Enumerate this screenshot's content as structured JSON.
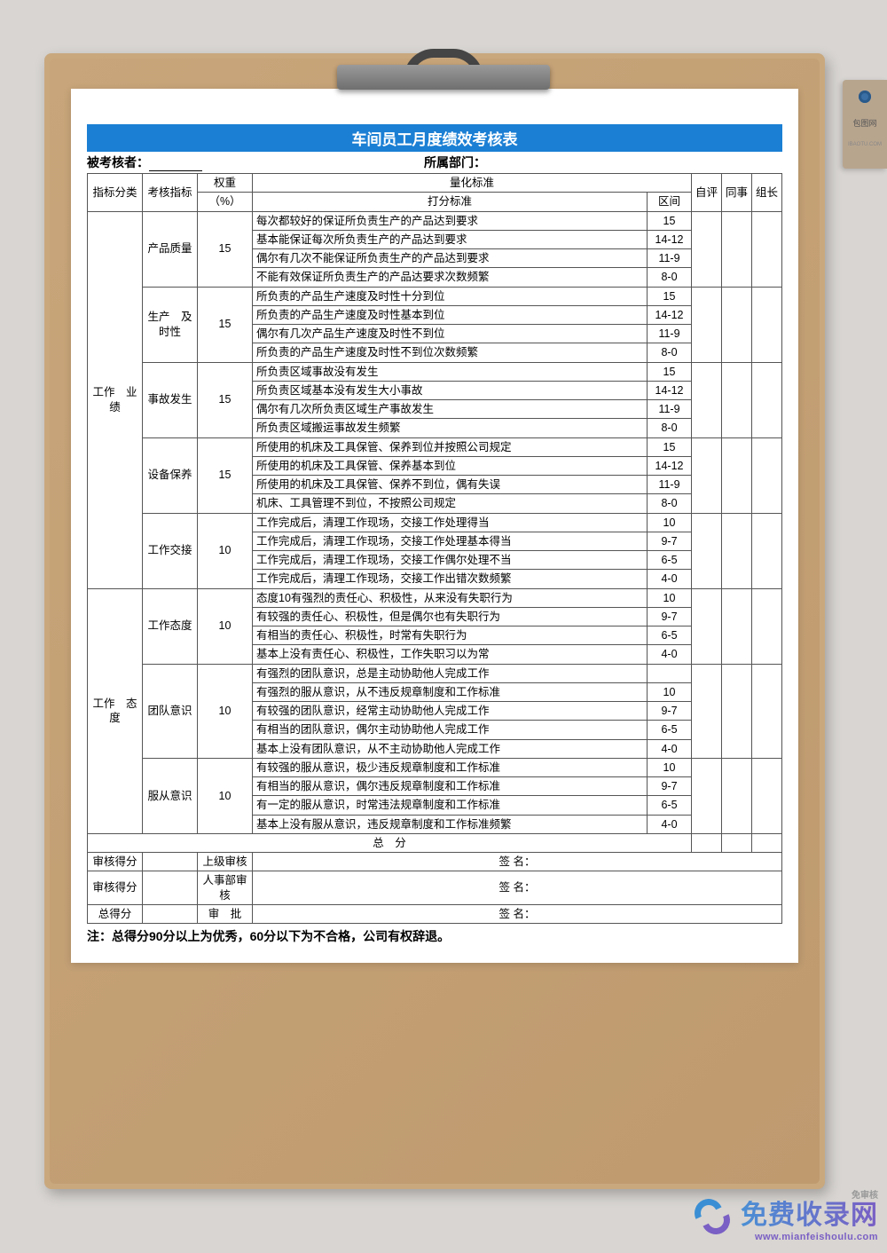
{
  "title": "车间员工月度绩效考核表",
  "header": {
    "examineeLabel": "被考核者：",
    "deptLabel": "所属部门："
  },
  "columns": {
    "category": "指标分类",
    "indicator": "考核指标",
    "weight": "权重",
    "weightUnit": "（%）",
    "quantStd": "量化标准",
    "scoreStd": "打分标准",
    "range": "区间",
    "self": "自评",
    "peer": "同事",
    "leader": "组长"
  },
  "categories": [
    {
      "name": "工作　业绩",
      "indicators": [
        {
          "name": "产品质量",
          "weight": "15",
          "rows": [
            {
              "std": "每次都较好的保证所负责生产的产品达到要求",
              "range": "15"
            },
            {
              "std": "基本能保证每次所负责生产的产品达到要求",
              "range": "14-12"
            },
            {
              "std": "偶尔有几次不能保证所负责生产的产品达到要求",
              "range": "11-9"
            },
            {
              "std": "不能有效保证所负责生产的产品达要求次数频繁",
              "range": "8-0"
            }
          ]
        },
        {
          "name": "生产　及时性",
          "weight": "15",
          "rows": [
            {
              "std": "所负责的产品生产速度及时性十分到位",
              "range": "15"
            },
            {
              "std": "所负责的产品生产速度及时性基本到位",
              "range": "14-12"
            },
            {
              "std": "偶尔有几次产品生产速度及时性不到位",
              "range": "11-9"
            },
            {
              "std": "所负责的产品生产速度及时性不到位次数频繁",
              "range": "8-0"
            }
          ]
        },
        {
          "name": "事故发生",
          "weight": "15",
          "rows": [
            {
              "std": "所负责区域事故没有发生",
              "range": "15"
            },
            {
              "std": "所负责区域基本没有发生大小事故",
              "range": "14-12"
            },
            {
              "std": "偶尔有几次所负责区域生产事故发生",
              "range": "11-9"
            },
            {
              "std": "所负责区域搬运事故发生频繁",
              "range": "8-0"
            }
          ]
        },
        {
          "name": "设备保养",
          "weight": "15",
          "rows": [
            {
              "std": "所使用的机床及工具保管、保养到位并按照公司规定",
              "range": "15"
            },
            {
              "std": "所使用的机床及工具保管、保养基本到位",
              "range": "14-12"
            },
            {
              "std": "所使用的机床及工具保管、保养不到位，偶有失误",
              "range": "11-9"
            },
            {
              "std": "机床、工具管理不到位，不按照公司规定",
              "range": "8-0"
            }
          ]
        },
        {
          "name": "工作交接",
          "weight": "10",
          "rows": [
            {
              "std": "工作完成后，清理工作现场，交接工作处理得当",
              "range": "10"
            },
            {
              "std": "工作完成后，清理工作现场，交接工作处理基本得当",
              "range": "9-7"
            },
            {
              "std": "工作完成后，清理工作现场，交接工作偶尔处理不当",
              "range": "6-5"
            },
            {
              "std": "工作完成后，清理工作现场，交接工作出错次数频繁",
              "range": "4-0"
            }
          ]
        }
      ]
    },
    {
      "name": "工作　态度",
      "indicators": [
        {
          "name": "工作态度",
          "weight": "10",
          "rows": [
            {
              "std": "态度10有强烈的责任心、积极性，从来没有失职行为",
              "range": "10"
            },
            {
              "std": "有较强的责任心、积极性，但是偶尔也有失职行为",
              "range": "9-7"
            },
            {
              "std": "有相当的责任心、积极性，时常有失职行为",
              "range": "6-5"
            },
            {
              "std": "基本上没有责任心、积极性，工作失职习以为常",
              "range": "4-0"
            }
          ]
        },
        {
          "name": "团队意识",
          "weight": "10",
          "rows": [
            {
              "std": "有强烈的团队意识，总是主动协助他人完成工作",
              "range": ""
            },
            {
              "std": "有强烈的服从意识，从不违反规章制度和工作标准",
              "range": "10"
            },
            {
              "std": "有较强的团队意识，经常主动协助他人完成工作",
              "range": "9-7"
            },
            {
              "std": "有相当的团队意识，偶尔主动协助他人完成工作",
              "range": "6-5"
            },
            {
              "std": "基本上没有团队意识，从不主动协助他人完成工作",
              "range": "4-0"
            }
          ]
        },
        {
          "name": "服从意识",
          "weight": "10",
          "rows": [
            {
              "std": "有较强的服从意识，极少违反规章制度和工作标准",
              "range": "10"
            },
            {
              "std": "有相当的服从意识，偶尔违反规章制度和工作标准",
              "range": "9-7"
            },
            {
              "std": "有一定的服从意识，时常违法规章制度和工作标准",
              "range": "6-5"
            },
            {
              "std": "基本上没有服从意识，违反规章制度和工作标准频繁",
              "range": "4-0"
            }
          ]
        }
      ]
    }
  ],
  "footer": {
    "totalScore": "总　分",
    "reviewScore": "审核得分",
    "superiorReview": "上级审核",
    "hrReview": "人事部审核",
    "totalGain": "总得分",
    "approval": "审　批",
    "signature": "签 名：",
    "note": "注：总得分90分以上为优秀，60分以下为不合格，公司有权辞退。"
  },
  "watermark": {
    "badge": "免审核",
    "main": "免费收录网",
    "url": "www.mianfeishoulu.com"
  },
  "tag": {
    "text": "包图网",
    "sub": "IBAOTU.COM"
  }
}
